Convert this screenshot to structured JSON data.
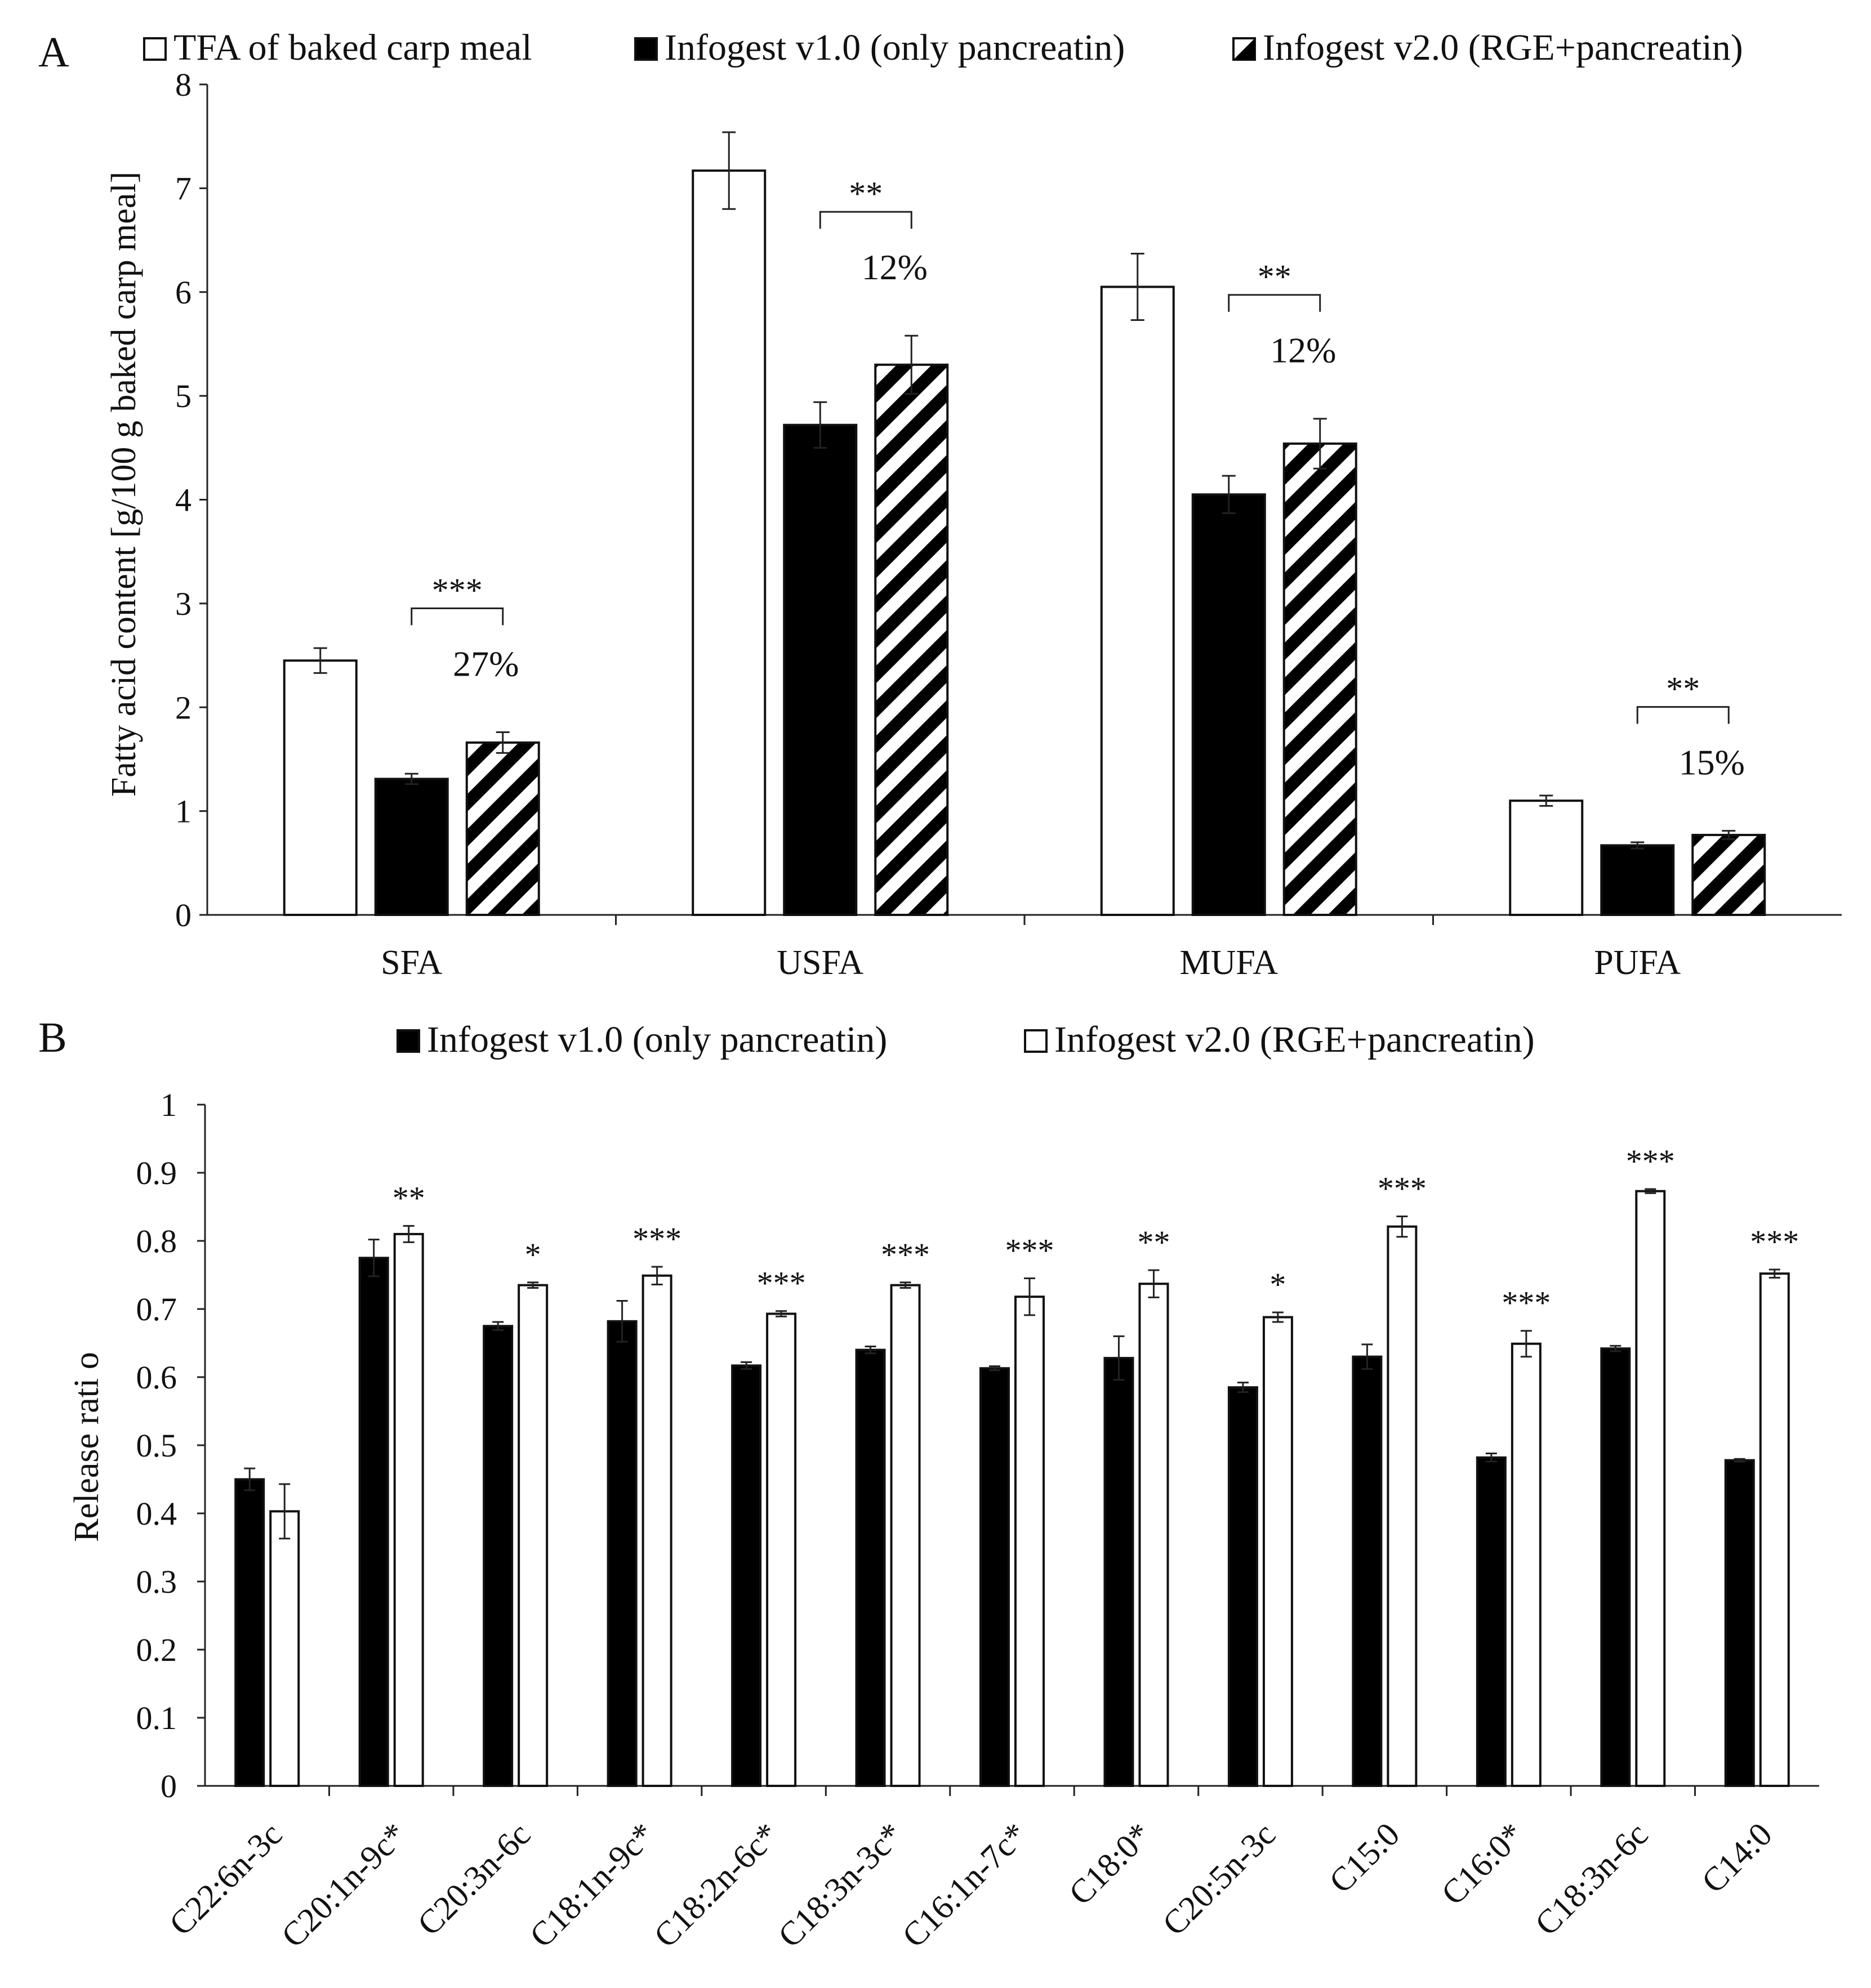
{
  "colors": {
    "black": "#000000",
    "white": "#ffffff",
    "axis": "#222222"
  },
  "chart_data": [
    {
      "panel_label": "A",
      "type": "bar",
      "title": "",
      "ylabel": "Fatty acid content [g/100 g baked carp meal]",
      "xlabel": "",
      "ylim": [
        0,
        8
      ],
      "yticks": [
        "0",
        "1",
        "2",
        "3",
        "4",
        "5",
        "6",
        "7",
        "8"
      ],
      "legend_position": "top",
      "categories": [
        "SFA",
        "USFA",
        "MUFA",
        "PUFA"
      ],
      "series": [
        {
          "name": "TFA of baked carp meal",
          "fill": "white",
          "values": [
            2.45,
            7.17,
            6.05,
            1.1
          ],
          "errors": [
            0.12,
            0.37,
            0.32,
            0.05
          ]
        },
        {
          "name": "Infogest v1.0 (only pancreatin)",
          "fill": "black",
          "values": [
            1.31,
            4.72,
            4.05,
            0.67
          ],
          "errors": [
            0.05,
            0.22,
            0.18,
            0.03
          ]
        },
        {
          "name": "Infogest v2.0 (RGE+pancreatin)",
          "fill": "hatched",
          "values": [
            1.66,
            5.3,
            4.54,
            0.77
          ],
          "errors": [
            0.1,
            0.28,
            0.24,
            0.04
          ]
        }
      ],
      "annotations": [
        {
          "category": "SFA",
          "stars": "***",
          "percent": "27%"
        },
        {
          "category": "USFA",
          "stars": "**",
          "percent": "12%"
        },
        {
          "category": "MUFA",
          "stars": "**",
          "percent": "12%"
        },
        {
          "category": "PUFA",
          "stars": "**",
          "percent": "15%"
        }
      ]
    },
    {
      "panel_label": "B",
      "type": "bar",
      "title": "",
      "ylabel": "Release rati o",
      "xlabel": "",
      "ylim": [
        0,
        1
      ],
      "yticks": [
        "0",
        "0.1",
        "0.2",
        "0.3",
        "0.4",
        "0.5",
        "0.6",
        "0.7",
        "0.8",
        "0.9",
        "1"
      ],
      "legend_position": "top",
      "categories": [
        "C22:6n-3c",
        "C20:1n-9c*",
        "C20:3n-6c",
        "C18:1n-9c*",
        "C18:2n-6c*",
        "C18:3n-3c*",
        "C16:1n-7c*",
        "C18:0*",
        "C20:5n-3c",
        "C15:0",
        "C16:0*",
        "C18:3n-6c",
        "C14:0"
      ],
      "series": [
        {
          "name": "Infogest v1.0 (only pancreatin)",
          "fill": "black",
          "values": [
            0.45,
            0.775,
            0.675,
            0.682,
            0.617,
            0.64,
            0.613,
            0.628,
            0.585,
            0.63,
            0.482,
            0.642,
            0.478
          ],
          "errors": [
            0.016,
            0.027,
            0.006,
            0.03,
            0.005,
            0.005,
            0.003,
            0.032,
            0.007,
            0.018,
            0.006,
            0.004,
            0.002
          ]
        },
        {
          "name": "Infogest v2.0 (RGE+pancreatin)",
          "fill": "white",
          "values": [
            0.403,
            0.81,
            0.735,
            0.749,
            0.693,
            0.735,
            0.718,
            0.737,
            0.688,
            0.821,
            0.649,
            0.873,
            0.752
          ],
          "errors": [
            0.04,
            0.012,
            0.004,
            0.013,
            0.004,
            0.004,
            0.027,
            0.02,
            0.007,
            0.015,
            0.019,
            0.003,
            0.006
          ]
        }
      ],
      "significance": [
        "",
        "**",
        "*",
        "***",
        "***",
        "***",
        "***",
        "**",
        "*",
        "***",
        "***",
        "***",
        "***"
      ]
    }
  ]
}
